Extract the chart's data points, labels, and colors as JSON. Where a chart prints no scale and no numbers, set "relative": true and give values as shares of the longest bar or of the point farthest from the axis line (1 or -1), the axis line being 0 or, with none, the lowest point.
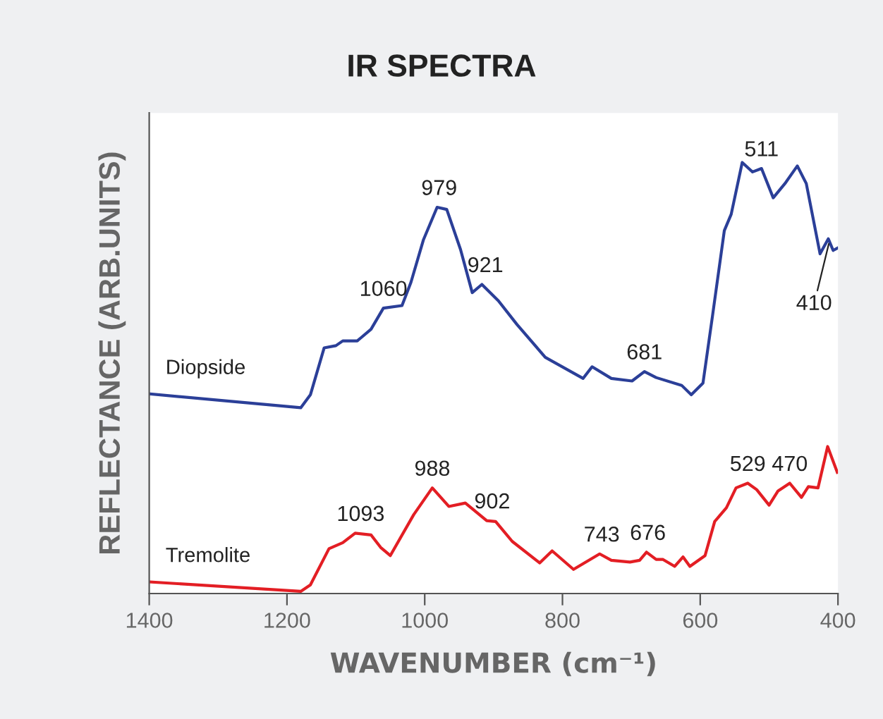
{
  "chart_data": {
    "type": "line",
    "title": "IR SPECTRA",
    "xlabel": "WAVENUMBER (cm⁻¹)",
    "ylabel": "REFLECTANCE (ARB.UNITS)",
    "relative": true,
    "legend": false,
    "grid": false,
    "xlim": [
      1400,
      400
    ],
    "xticks": [
      1400,
      1200,
      1000,
      800,
      600,
      400
    ],
    "series": [
      {
        "name": "Diopside",
        "color": "#2b3f98",
        "x": [
          1399,
          1180,
          1166,
          1146,
          1129,
          1119,
          1098,
          1078,
          1060,
          1033,
          1020,
          1002,
          982,
          968,
          948,
          931,
          917,
          893,
          866,
          825,
          770,
          757,
          729,
          699,
          681,
          664,
          627,
          613,
          596,
          582,
          565,
          555,
          539,
          524,
          511,
          494,
          477,
          459,
          446,
          426,
          414,
          407,
          401
        ],
        "values": [
          0.463,
          0.431,
          0.461,
          0.57,
          0.575,
          0.586,
          0.586,
          0.613,
          0.662,
          0.668,
          0.722,
          0.82,
          0.896,
          0.891,
          0.798,
          0.698,
          0.717,
          0.679,
          0.624,
          0.548,
          0.499,
          0.526,
          0.499,
          0.493,
          0.515,
          0.501,
          0.483,
          0.461,
          0.488,
          0.646,
          0.842,
          0.88,
          1.0,
          0.978,
          0.986,
          0.918,
          0.951,
          0.992,
          0.951,
          0.788,
          0.823,
          0.796,
          0.801
        ]
      },
      {
        "name": "Tremolite",
        "color": "#e31e24",
        "x": [
          1399,
          1180,
          1166,
          1139,
          1119,
          1101,
          1078,
          1064,
          1050,
          1016,
          989,
          965,
          941,
          910,
          897,
          873,
          833,
          815,
          784,
          746,
          729,
          702,
          688,
          678,
          664,
          654,
          637,
          625,
          615,
          593,
          579,
          562,
          548,
          531,
          518,
          500,
          487,
          470,
          453,
          443,
          429,
          415,
          401
        ],
        "values": [
          0.027,
          0.005,
          0.02,
          0.104,
          0.118,
          0.14,
          0.136,
          0.107,
          0.088,
          0.183,
          0.245,
          0.202,
          0.21,
          0.169,
          0.167,
          0.121,
          0.071,
          0.099,
          0.056,
          0.092,
          0.077,
          0.073,
          0.077,
          0.096,
          0.079,
          0.079,
          0.063,
          0.085,
          0.063,
          0.088,
          0.167,
          0.199,
          0.245,
          0.256,
          0.241,
          0.205,
          0.238,
          0.256,
          0.223,
          0.248,
          0.245,
          0.341,
          0.281
        ]
      }
    ],
    "annotations": [
      {
        "text": "1060",
        "x": 1060,
        "y": 0.662
      },
      {
        "text": "979",
        "x": 979,
        "y": 0.896
      },
      {
        "text": "921",
        "x": 912,
        "y": 0.717
      },
      {
        "text": "681",
        "x": 681,
        "y": 0.515
      },
      {
        "text": "511",
        "x": 511,
        "y": 0.986
      },
      {
        "text": "410",
        "x": 412,
        "y": 0.82
      },
      {
        "text": "1093",
        "x": 1093,
        "y": 0.14
      },
      {
        "text": "988",
        "x": 989,
        "y": 0.245
      },
      {
        "text": "902",
        "x": 902,
        "y": 0.169
      },
      {
        "text": "743",
        "x": 743,
        "y": 0.092
      },
      {
        "text": "676",
        "x": 676,
        "y": 0.096
      },
      {
        "text": "529",
        "x": 531,
        "y": 0.256
      },
      {
        "text": "470",
        "x": 470,
        "y": 0.256
      }
    ]
  }
}
